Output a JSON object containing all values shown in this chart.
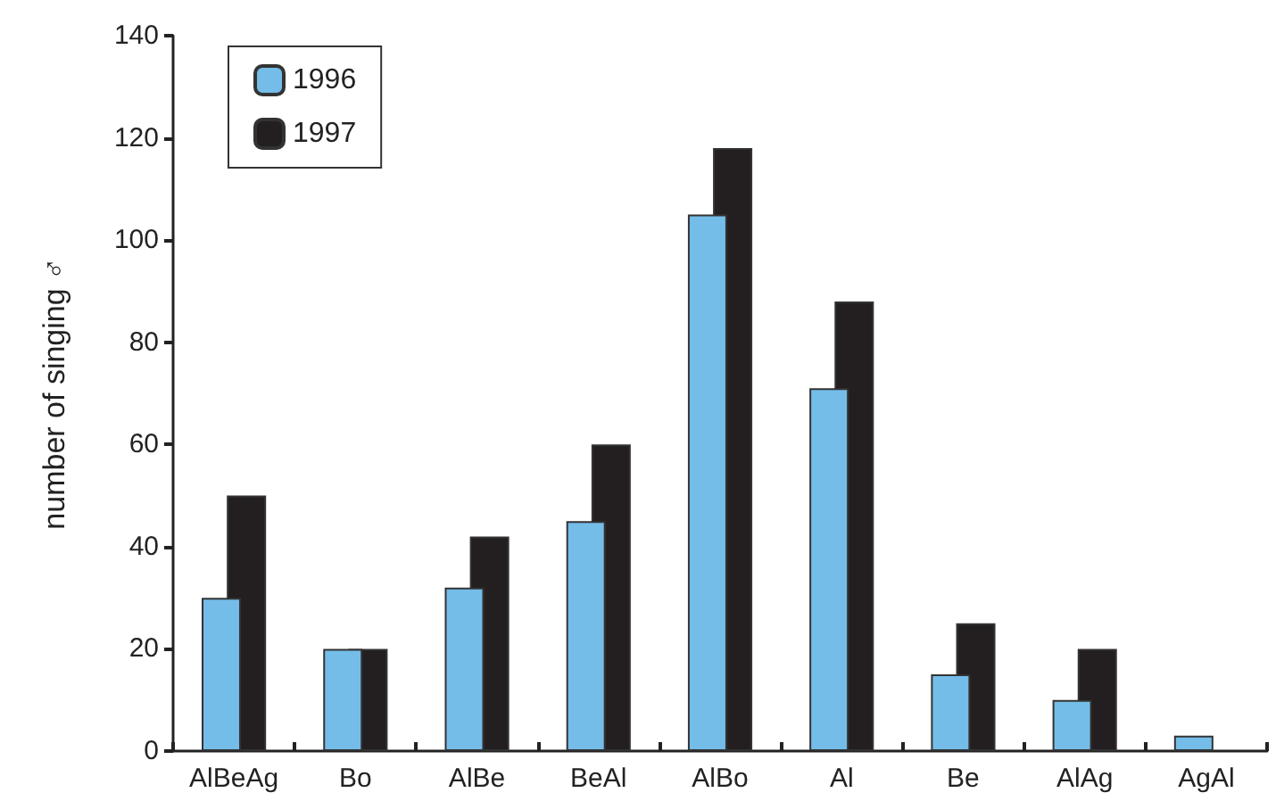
{
  "chart_data": {
    "type": "bar",
    "ylabel": "number of singing ♂",
    "categories": [
      "AlBeAg",
      "Bo",
      "AlBe",
      "BeAl",
      "AlBo",
      "Al",
      "Be",
      "AlAg",
      "AgAl"
    ],
    "series": [
      {
        "name": "1996",
        "color": "#74bde9",
        "values": [
          30,
          20,
          32,
          45,
          105,
          71,
          15,
          10,
          3
        ]
      },
      {
        "name": "1997",
        "color": "#231f20",
        "values": [
          50,
          20,
          42,
          60,
          118,
          88,
          25,
          20,
          null
        ]
      }
    ],
    "ylim": [
      0,
      140
    ],
    "yticks": [
      0,
      20,
      40,
      60,
      80,
      100,
      120,
      140
    ],
    "grid": false,
    "legend": "top left"
  }
}
